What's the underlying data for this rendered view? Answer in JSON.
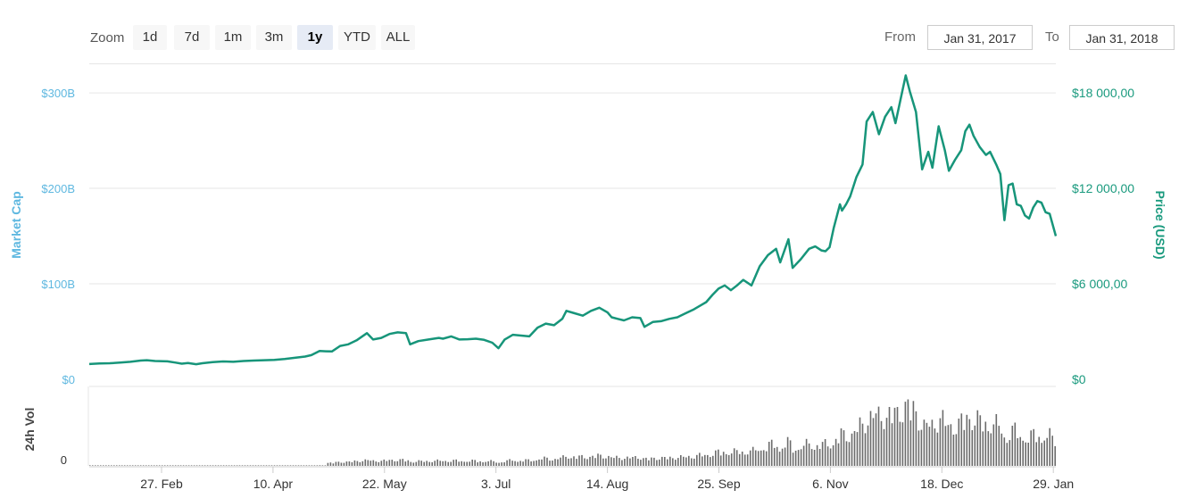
{
  "toolbar": {
    "zoom_label": "Zoom",
    "zoom_buttons": [
      "1d",
      "7d",
      "1m",
      "3m",
      "1y",
      "YTD",
      "ALL"
    ],
    "active_zoom": "1y",
    "from_label": "From",
    "from_value": "Jan 31, 2017",
    "to_label": "To",
    "to_value": "Jan 31, 2018"
  },
  "chart_data": {
    "type": "line",
    "left_axis": {
      "title": "Market Cap",
      "ticks": [
        "$0",
        "$100B",
        "$200B",
        "$300B"
      ],
      "range": [
        0,
        330
      ]
    },
    "right_axis": {
      "title": "Price (USD)",
      "ticks": [
        "$0",
        "$6 000,00",
        "$12 000,00",
        "$18 000,00"
      ],
      "range": [
        0,
        19800
      ]
    },
    "x_ticks": [
      "27. Feb",
      "10. Apr",
      "22. May",
      "3. Jul",
      "14. Aug",
      "25. Sep",
      "6. Nov",
      "18. Dec",
      "29. Jan"
    ],
    "x_range_days": [
      0,
      365
    ],
    "series": [
      {
        "points": [
          [
            0,
            960
          ],
          [
            5,
            1000
          ],
          [
            10,
            1010
          ],
          [
            15,
            1050
          ],
          [
            20,
            1100
          ],
          [
            25,
            1180
          ],
          [
            28,
            1200
          ],
          [
            32,
            1150
          ],
          [
            38,
            1130
          ],
          [
            42,
            1050
          ],
          [
            45,
            980
          ],
          [
            48,
            1020
          ],
          [
            52,
            950
          ],
          [
            55,
            1010
          ],
          [
            60,
            1080
          ],
          [
            65,
            1120
          ],
          [
            70,
            1100
          ],
          [
            75,
            1150
          ],
          [
            80,
            1180
          ],
          [
            85,
            1200
          ],
          [
            90,
            1220
          ],
          [
            95,
            1280
          ],
          [
            100,
            1350
          ],
          [
            105,
            1430
          ],
          [
            108,
            1520
          ],
          [
            112,
            1780
          ],
          [
            115,
            1760
          ],
          [
            118,
            1750
          ],
          [
            122,
            2100
          ],
          [
            126,
            2200
          ],
          [
            130,
            2450
          ],
          [
            135,
            2900
          ],
          [
            138,
            2500
          ],
          [
            142,
            2600
          ],
          [
            146,
            2850
          ],
          [
            150,
            2950
          ],
          [
            154,
            2900
          ],
          [
            156,
            2200
          ],
          [
            160,
            2400
          ],
          [
            165,
            2500
          ],
          [
            170,
            2600
          ],
          [
            172,
            2550
          ],
          [
            176,
            2700
          ],
          [
            180,
            2500
          ],
          [
            184,
            2520
          ],
          [
            188,
            2550
          ],
          [
            192,
            2480
          ],
          [
            196,
            2300
          ],
          [
            199,
            1950
          ],
          [
            202,
            2500
          ],
          [
            206,
            2800
          ],
          [
            210,
            2750
          ],
          [
            214,
            2700
          ],
          [
            218,
            3250
          ],
          [
            222,
            3500
          ],
          [
            226,
            3400
          ],
          [
            230,
            3800
          ],
          [
            232,
            4300
          ],
          [
            236,
            4150
          ],
          [
            240,
            4000
          ],
          [
            244,
            4300
          ],
          [
            248,
            4500
          ],
          [
            252,
            4200
          ],
          [
            254,
            3900
          ],
          [
            257,
            3800
          ],
          [
            260,
            3700
          ],
          [
            264,
            3900
          ],
          [
            268,
            3850
          ],
          [
            270,
            3300
          ],
          [
            274,
            3600
          ],
          [
            278,
            3650
          ],
          [
            282,
            3800
          ],
          [
            286,
            3900
          ],
          [
            290,
            4150
          ],
          [
            294,
            4400
          ],
          [
            298,
            4700
          ],
          [
            300,
            4850
          ],
          [
            303,
            5300
          ],
          [
            306,
            5700
          ],
          [
            309,
            5900
          ],
          [
            312,
            5600
          ],
          [
            315,
            5900
          ],
          [
            318,
            6250
          ],
          [
            322,
            5900
          ],
          [
            326,
            7100
          ],
          [
            330,
            7800
          ],
          [
            334,
            8200
          ],
          [
            336,
            7350
          ],
          [
            340,
            8800
          ],
          [
            342,
            7000
          ],
          [
            346,
            7550
          ],
          [
            350,
            8200
          ],
          [
            353,
            8350
          ],
          [
            356,
            8100
          ],
          [
            358,
            8050
          ],
          [
            360,
            8300
          ],
          [
            362,
            9500
          ],
          [
            365,
            11000
          ],
          [
            366,
            10600
          ],
          [
            368,
            11000
          ],
          [
            370,
            11500
          ],
          [
            373,
            12700
          ],
          [
            376,
            13500
          ],
          [
            378,
            16200
          ],
          [
            381,
            16800
          ],
          [
            384,
            15400
          ],
          [
            387,
            16500
          ],
          [
            390,
            17100
          ],
          [
            392,
            16100
          ],
          [
            395,
            17900
          ],
          [
            397,
            19100
          ],
          [
            399,
            18100
          ],
          [
            402,
            16800
          ],
          [
            405,
            13200
          ],
          [
            408,
            14300
          ],
          [
            410,
            13300
          ],
          [
            413,
            15900
          ],
          [
            416,
            14400
          ],
          [
            418,
            13100
          ],
          [
            421,
            13800
          ],
          [
            424,
            14400
          ],
          [
            426,
            15600
          ],
          [
            428,
            16000
          ],
          [
            430,
            15300
          ],
          [
            433,
            14600
          ],
          [
            436,
            14100
          ],
          [
            438,
            14300
          ],
          [
            441,
            13500
          ],
          [
            443,
            12900
          ],
          [
            445,
            10000
          ],
          [
            447,
            12200
          ],
          [
            449,
            12300
          ],
          [
            451,
            11000
          ],
          [
            453,
            10900
          ],
          [
            455,
            10300
          ],
          [
            457,
            10100
          ],
          [
            459,
            10800
          ],
          [
            461,
            11200
          ],
          [
            463,
            11100
          ],
          [
            465,
            10500
          ],
          [
            467,
            10400
          ],
          [
            470,
            9000
          ]
        ]
      }
    ],
    "volume_panel": {
      "title": "24h Vol",
      "ticks": [
        "0"
      ]
    }
  }
}
